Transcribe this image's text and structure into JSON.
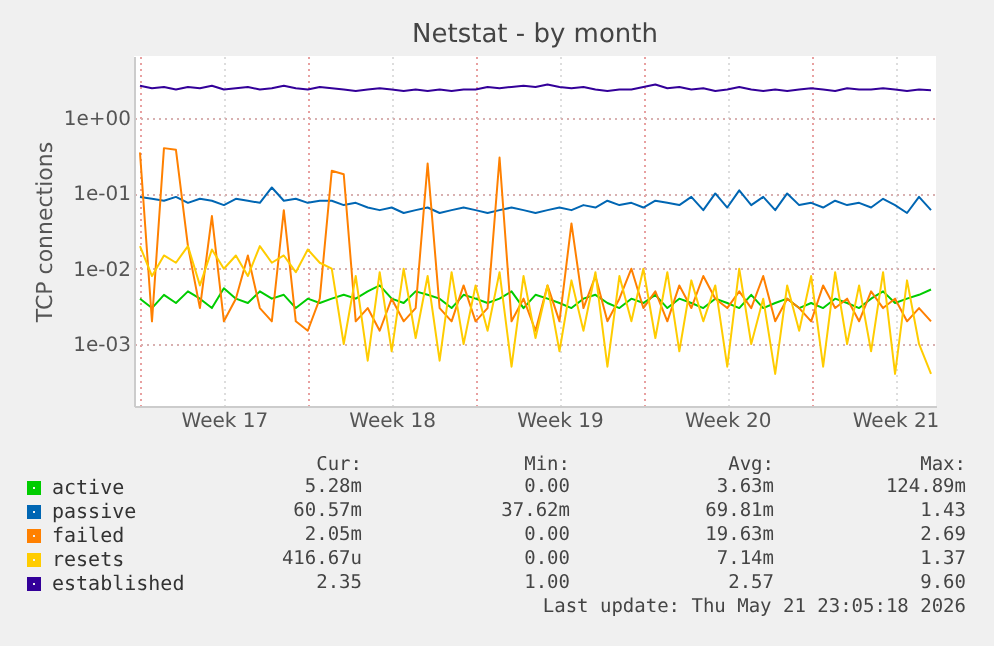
{
  "chart_data": {
    "type": "line",
    "title": "Netstat - by month",
    "ylabel": "TCP connections",
    "x": [
      "2026-04-18T18:00",
      "2026-04-19T06:00",
      "2026-04-19T18:00",
      "2026-04-20T06:00",
      "2026-04-20T18:00",
      "2026-04-21T06:00",
      "2026-04-21T18:00",
      "2026-04-22T06:00",
      "2026-04-22T18:00",
      "2026-04-23T06:00",
      "2026-04-23T18:00",
      "2026-04-24T06:00",
      "2026-04-24T18:00",
      "2026-04-25T06:00",
      "2026-04-25T18:00",
      "2026-04-26T06:00",
      "2026-04-26T18:00",
      "2026-04-27T06:00",
      "2026-04-27T18:00",
      "2026-04-28T06:00",
      "2026-04-28T18:00",
      "2026-04-29T06:00",
      "2026-04-29T18:00",
      "2026-04-30T06:00",
      "2026-04-30T18:00",
      "2026-05-01T06:00",
      "2026-05-01T18:00",
      "2026-05-02T06:00",
      "2026-05-02T18:00",
      "2026-05-03T06:00",
      "2026-05-03T18:00",
      "2026-05-04T06:00",
      "2026-05-04T18:00",
      "2026-05-05T06:00",
      "2026-05-05T18:00",
      "2026-05-06T06:00",
      "2026-05-06T18:00",
      "2026-05-07T06:00",
      "2026-05-07T18:00",
      "2026-05-08T06:00",
      "2026-05-08T18:00",
      "2026-05-09T06:00",
      "2026-05-09T18:00",
      "2026-05-10T06:00",
      "2026-05-10T18:00",
      "2026-05-11T06:00",
      "2026-05-11T18:00",
      "2026-05-12T06:00",
      "2026-05-12T18:00",
      "2026-05-13T06:00",
      "2026-05-13T18:00",
      "2026-05-14T06:00",
      "2026-05-14T18:00",
      "2026-05-15T06:00",
      "2026-05-15T18:00",
      "2026-05-16T06:00",
      "2026-05-16T18:00",
      "2026-05-17T06:00",
      "2026-05-17T18:00",
      "2026-05-18T06:00",
      "2026-05-18T18:00",
      "2026-05-19T06:00",
      "2026-05-19T18:00",
      "2026-05-20T06:00",
      "2026-05-20T18:00",
      "2026-05-21T06:00",
      "2026-05-21T18:00"
    ],
    "series": [
      {
        "name": "active",
        "color": "#00cc00",
        "values": [
          0.004,
          0.003,
          0.0045,
          0.0035,
          0.005,
          0.004,
          0.003,
          0.0055,
          0.004,
          0.0035,
          0.005,
          0.004,
          0.0045,
          0.003,
          0.004,
          0.0035,
          0.004,
          0.0045,
          0.004,
          0.005,
          0.006,
          0.004,
          0.0035,
          0.005,
          0.0045,
          0.004,
          0.003,
          0.0045,
          0.004,
          0.0035,
          0.004,
          0.005,
          0.003,
          0.0045,
          0.004,
          0.0035,
          0.003,
          0.004,
          0.0045,
          0.0035,
          0.003,
          0.004,
          0.0035,
          0.0045,
          0.003,
          0.004,
          0.0035,
          0.003,
          0.004,
          0.0035,
          0.003,
          0.0045,
          0.003,
          0.0035,
          0.004,
          0.003,
          0.0035,
          0.003,
          0.004,
          0.0035,
          0.003,
          0.004,
          0.005,
          0.0035,
          0.004,
          0.0045,
          0.0053
        ]
      },
      {
        "name": "passive",
        "color": "#0066b3",
        "values": [
          0.09,
          0.085,
          0.08,
          0.09,
          0.075,
          0.085,
          0.08,
          0.07,
          0.085,
          0.08,
          0.075,
          0.12,
          0.08,
          0.085,
          0.075,
          0.08,
          0.08,
          0.07,
          0.075,
          0.065,
          0.06,
          0.065,
          0.055,
          0.06,
          0.065,
          0.055,
          0.06,
          0.065,
          0.06,
          0.055,
          0.06,
          0.065,
          0.06,
          0.055,
          0.06,
          0.065,
          0.06,
          0.07,
          0.065,
          0.08,
          0.07,
          0.075,
          0.065,
          0.08,
          0.075,
          0.07,
          0.09,
          0.06,
          0.1,
          0.065,
          0.11,
          0.07,
          0.09,
          0.06,
          0.1,
          0.07,
          0.075,
          0.065,
          0.08,
          0.07,
          0.075,
          0.065,
          0.085,
          0.07,
          0.055,
          0.09,
          0.06
        ]
      },
      {
        "name": "failed",
        "color": "#ff8000",
        "values": [
          0.35,
          0.002,
          0.4,
          0.38,
          0.02,
          0.003,
          0.05,
          0.002,
          0.004,
          0.015,
          0.003,
          0.002,
          0.06,
          0.002,
          0.0015,
          0.004,
          0.2,
          0.18,
          0.002,
          0.003,
          0.0015,
          0.004,
          0.002,
          0.003,
          0.25,
          0.003,
          0.002,
          0.006,
          0.002,
          0.003,
          0.3,
          0.002,
          0.004,
          0.0015,
          0.006,
          0.002,
          0.04,
          0.003,
          0.008,
          0.002,
          0.004,
          0.01,
          0.003,
          0.005,
          0.002,
          0.006,
          0.003,
          0.008,
          0.004,
          0.003,
          0.005,
          0.003,
          0.008,
          0.002,
          0.004,
          0.003,
          0.002,
          0.006,
          0.003,
          0.004,
          0.002,
          0.005,
          0.003,
          0.004,
          0.002,
          0.003,
          0.002
        ]
      },
      {
        "name": "resets",
        "color": "#ffcc00",
        "values": [
          0.02,
          0.008,
          0.015,
          0.012,
          0.02,
          0.006,
          0.018,
          0.01,
          0.015,
          0.008,
          0.02,
          0.012,
          0.015,
          0.009,
          0.018,
          0.012,
          0.01,
          0.001,
          0.008,
          0.0006,
          0.009,
          0.0008,
          0.01,
          0.0012,
          0.008,
          0.0006,
          0.009,
          0.001,
          0.006,
          0.0015,
          0.009,
          0.0005,
          0.008,
          0.0012,
          0.006,
          0.0008,
          0.007,
          0.0015,
          0.009,
          0.0005,
          0.008,
          0.002,
          0.01,
          0.0012,
          0.009,
          0.0008,
          0.007,
          0.002,
          0.006,
          0.0005,
          0.01,
          0.001,
          0.004,
          0.0004,
          0.006,
          0.0015,
          0.008,
          0.0005,
          0.009,
          0.001,
          0.006,
          0.0008,
          0.009,
          0.0004,
          0.007,
          0.001,
          0.0004
        ]
      },
      {
        "name": "established",
        "color": "#330099",
        "values": [
          2.7,
          2.5,
          2.6,
          2.4,
          2.6,
          2.5,
          2.7,
          2.4,
          2.5,
          2.6,
          2.4,
          2.5,
          2.7,
          2.5,
          2.4,
          2.6,
          2.5,
          2.4,
          2.3,
          2.4,
          2.5,
          2.4,
          2.3,
          2.4,
          2.3,
          2.4,
          2.3,
          2.4,
          2.4,
          2.6,
          2.5,
          2.6,
          2.7,
          2.6,
          2.8,
          2.6,
          2.5,
          2.6,
          2.4,
          2.3,
          2.4,
          2.4,
          2.6,
          2.8,
          2.5,
          2.6,
          2.4,
          2.5,
          2.3,
          2.4,
          2.6,
          2.4,
          2.3,
          2.4,
          2.3,
          2.4,
          2.5,
          2.4,
          2.3,
          2.5,
          2.4,
          2.4,
          2.5,
          2.4,
          2.3,
          2.4,
          2.35
        ]
      }
    ],
    "xlim": [
      "2026-04-18T12:00",
      "2026-05-21T23:00"
    ],
    "xticks": [
      {
        "value": "2026-04-18T18:00",
        "label": null
      },
      {
        "value": "2026-04-22T06:00",
        "label": "Week 17"
      },
      {
        "value": "2026-04-25T18:00",
        "label": null
      },
      {
        "value": "2026-04-29T06:00",
        "label": "Week 18"
      },
      {
        "value": "2026-05-02T18:00",
        "label": null
      },
      {
        "value": "2026-05-06T06:00",
        "label": "Week 19"
      },
      {
        "value": "2026-05-09T18:00",
        "label": null
      },
      {
        "value": "2026-05-13T06:00",
        "label": "Week 20"
      },
      {
        "value": "2026-05-16T18:00",
        "label": null
      },
      {
        "value": "2026-05-20T06:00",
        "label": "Week 21"
      }
    ],
    "log": true,
    "ylim": [
      0.00015,
      6.7
    ],
    "yticks": [
      {
        "value": 0.001,
        "label": "1e-03"
      },
      {
        "value": 0.01,
        "label": "1e-02"
      },
      {
        "value": 0.1,
        "label": "1e-01"
      },
      {
        "value": 1,
        "label": "1e+00"
      }
    ],
    "grid": true,
    "legend": "bottom",
    "annotations": [
      "Cur:",
      "Min:",
      "Avg:",
      "Max:",
      "5.28m",
      "0.00",
      "3.63m",
      "124.89m",
      "60.57m",
      "37.62m",
      "69.81m",
      "1.43",
      "2.05m",
      "0.00",
      "19.63m",
      "2.69",
      "416.67u",
      "0.00",
      "7.14m",
      "1.37",
      "2.35",
      "1.00",
      "2.57",
      "9.60",
      "Last update: Thu May 21 23:05:18 2026"
    ]
  }
}
